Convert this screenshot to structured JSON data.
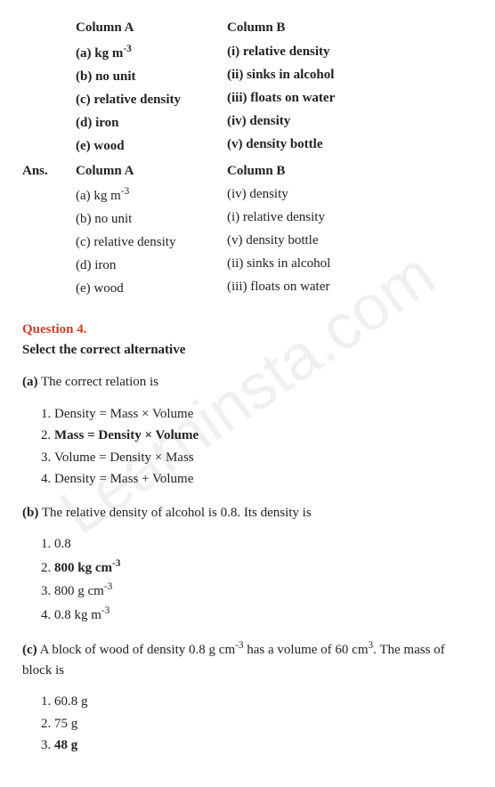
{
  "watermark": "Learninsta.com",
  "columnA_header": "Column A",
  "columnB_header": "Column B",
  "question_rows_a": [
    {
      "label": "(a)",
      "text": "kg m",
      "sup": "-3",
      "bold": true
    },
    {
      "label": "(b)",
      "text": "no unit",
      "bold": true
    },
    {
      "label": "(c)",
      "text": "relative density",
      "bold": true
    },
    {
      "label": "(d)",
      "text": "iron",
      "bold": true
    },
    {
      "label": "(e)",
      "text": "wood",
      "bold": true
    }
  ],
  "question_rows_b": [
    {
      "label": "(i)",
      "text": "relative density",
      "bold": true
    },
    {
      "label": "(ii)",
      "text": "sinks in alcohol",
      "bold": true
    },
    {
      "label": "(iii)",
      "text": "floats on water",
      "bold": true
    },
    {
      "label": "(iv)",
      "text": "density",
      "bold": true
    },
    {
      "label": "(v)",
      "text": "density bottle",
      "bold": true
    }
  ],
  "ans_label": "Ans.",
  "answer_rows_a": [
    {
      "label": "(a)",
      "text": "kg m",
      "sup": "-3"
    },
    {
      "label": "(b)",
      "text": "no unit"
    },
    {
      "label": "(c)",
      "text": "relative density"
    },
    {
      "label": "(d)",
      "text": "iron"
    },
    {
      "label": "(e)",
      "text": "wood"
    }
  ],
  "answer_rows_b": [
    {
      "label": "(iv)",
      "text": "density"
    },
    {
      "label": "(i)",
      "text": "relative density"
    },
    {
      "label": "(v)",
      "text": "density bottle"
    },
    {
      "label": "(ii)",
      "text": "sinks in alcohol"
    },
    {
      "label": "(iii)",
      "text": "floats on water"
    }
  ],
  "q4_number": "Question 4.",
  "q4_title": "Select the correct alternative",
  "part_a_label": "(a)",
  "part_a_text": " The correct relation is",
  "part_a_options": [
    {
      "text": "Density = Mass × Volume",
      "bold": false
    },
    {
      "text": "Mass = Density × Volume",
      "bold": true
    },
    {
      "text": "Volume = Density × Mass",
      "bold": false
    },
    {
      "text": "Density = Mass + Volume",
      "bold": false
    }
  ],
  "part_b_label": "(b)",
  "part_b_text": " The relative density of alcohol is 0.8. Its density is",
  "part_b_options": [
    {
      "text": "0.8",
      "bold": false
    },
    {
      "text": "800 kg cm",
      "sup": "-3",
      "bold": true
    },
    {
      "text": "800 g cm",
      "sup": "-3",
      "bold": false
    },
    {
      "text": "0.8 kg m",
      "sup": "-3",
      "bold": false
    }
  ],
  "part_c_label": "(c)",
  "part_c_text_before": " A block of wood of density 0.8 g cm",
  "part_c_sup1": "-3",
  "part_c_text_mid": " has a volume of 60 cm",
  "part_c_sup2": "3",
  "part_c_text_after": ". The mass of block is",
  "part_c_options": [
    {
      "text": "60.8 g",
      "bold": false
    },
    {
      "text": "75 g",
      "bold": false
    },
    {
      "text": "48 g",
      "bold": true
    }
  ]
}
